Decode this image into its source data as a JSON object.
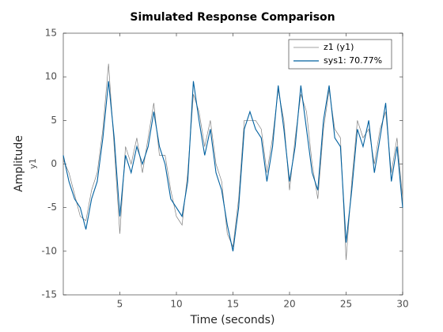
{
  "chart_data": {
    "type": "line",
    "title": "Simulated Response Comparison",
    "xlabel": "Time (seconds)",
    "ylabel": "Amplitude",
    "ylabel_sub": "y1",
    "x": [
      0,
      0.5,
      1,
      1.5,
      2,
      2.5,
      3,
      3.5,
      4,
      4.5,
      5,
      5.5,
      6,
      6.5,
      7,
      7.5,
      8,
      8.5,
      9,
      9.5,
      10,
      10.5,
      11,
      11.5,
      12,
      12.5,
      13,
      13.5,
      14,
      14.5,
      15,
      15.5,
      16,
      16.5,
      17,
      17.5,
      18,
      18.5,
      19,
      19.5,
      20,
      20.5,
      21,
      21.5,
      22,
      22.5,
      23,
      23.5,
      24,
      24.5,
      25,
      25.5,
      26,
      26.5,
      27,
      27.5,
      28,
      28.5,
      29,
      29.5,
      30
    ],
    "series": [
      {
        "name": "z1 (y1)",
        "color": "#808080",
        "values": [
          0.5,
          -1,
          -3.5,
          -6,
          -6.5,
          -3,
          -1,
          4,
          11.5,
          2,
          -8,
          2,
          0,
          3,
          -1,
          3,
          7,
          1,
          1,
          -3,
          -6,
          -7,
          -1,
          8,
          6,
          2,
          5,
          0,
          -2,
          -8,
          -9.5,
          -4,
          5,
          5,
          5,
          4,
          -1,
          3,
          8.5,
          5,
          -3,
          3,
          8,
          6,
          0,
          -4,
          4,
          8.5,
          4,
          3,
          -11,
          -2,
          5,
          3,
          4,
          0,
          4,
          6,
          -1,
          3,
          -4
        ]
      },
      {
        "name": "sys1: 70.77%",
        "color": "#00609f",
        "values": [
          1,
          -2,
          -4,
          -5,
          -7.5,
          -4,
          -2,
          3,
          9.5,
          3,
          -6,
          1,
          -1,
          2,
          0,
          2,
          6,
          2,
          0,
          -4,
          -5,
          -6,
          -2,
          9.5,
          5,
          1,
          4,
          -1,
          -3,
          -7,
          -10,
          -5,
          4,
          6,
          4,
          3,
          -2,
          2,
          9,
          4,
          -2,
          2,
          9,
          4,
          -1,
          -3,
          5,
          9,
          3,
          2,
          -9,
          -3,
          4,
          2,
          5,
          -1,
          3,
          7,
          -2,
          2,
          -5
        ]
      }
    ],
    "xlim": [
      0,
      30
    ],
    "xticks": [
      5,
      10,
      15,
      20,
      25,
      30
    ],
    "ylim": [
      -15,
      15
    ],
    "yticks": [
      -15,
      -10,
      -5,
      0,
      5,
      10,
      15
    ],
    "grid": false,
    "legend": "top-right"
  }
}
